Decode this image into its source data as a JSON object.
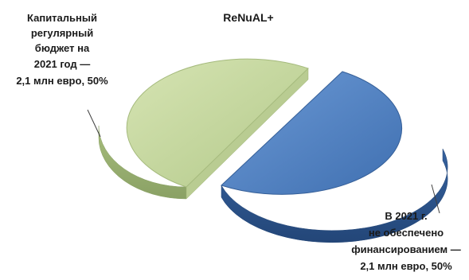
{
  "chart_data": {
    "type": "pie",
    "title": "ReNuAL+",
    "three_d": true,
    "exploded": true,
    "slices": [
      {
        "label_lines": [
          "Капитальный",
          "регулярный",
          "бюджет на",
          "2021 год —",
          "2,1 млн евро, 50%"
        ],
        "value": 2.1,
        "percent": 50,
        "color": "#c3d69b"
      },
      {
        "label_lines": [
          "В 2021 г.",
          "не обеспечено",
          "финансированием —",
          "2,1 млн евро, 50%"
        ],
        "value": 2.1,
        "percent": 50,
        "color": "#4f81bd"
      }
    ],
    "legend": "none"
  }
}
